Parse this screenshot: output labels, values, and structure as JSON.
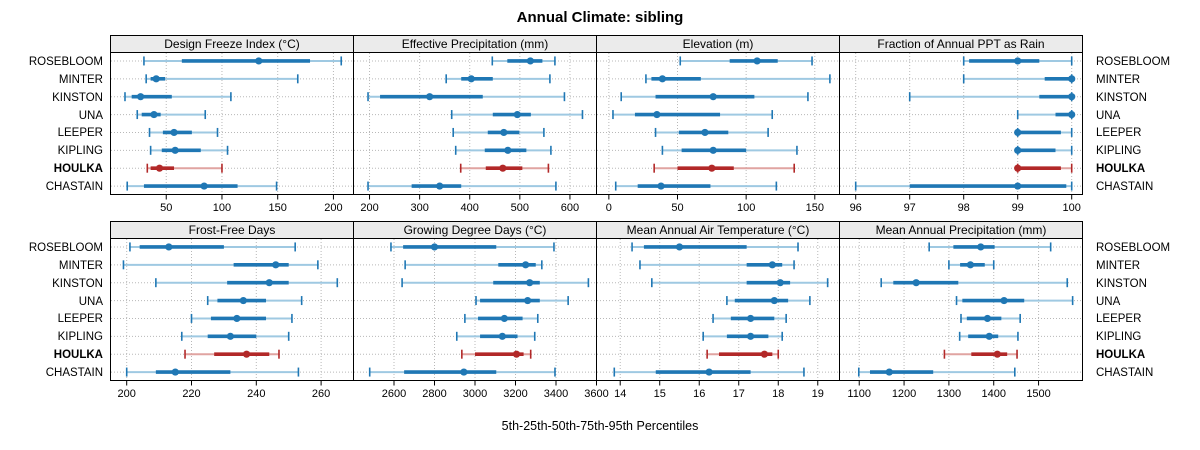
{
  "title": "Annual Climate: sibling",
  "caption": "5th-25th-50th-75th-95th Percentiles",
  "stations": [
    "ROSEBLOOM",
    "MINTER",
    "KINSTON",
    "UNA",
    "LEEPER",
    "KIPLING",
    "HOULKA",
    "CHASTAIN"
  ],
  "highlight_station": "HOULKA",
  "percentile_labels": [
    "5th",
    "25th",
    "50th",
    "75th",
    "95th"
  ],
  "colors": {
    "point": "#1f77b4",
    "whisker_light": "#9fc9e2",
    "highlight_point": "#b22828",
    "highlight_whisker_light": "#e0a4a1",
    "strip_bg": "#ebebeb",
    "panel_border": "#000000",
    "grid": "#b8b8b8",
    "text": "#000000"
  },
  "chart_data": {
    "type": "scatter",
    "variant": "percentile-interval-dotplot (5th,25th,50th,75th,95th)",
    "grid": "dotted",
    "layout": "2 rows x 4 columns, station labels on both sides, HOULKA highlighted red/bold",
    "panels": [
      {
        "title": "Design Freeze Index (°C)",
        "xlim": [
          0,
          218
        ],
        "ticks": [
          50,
          100,
          150,
          200
        ],
        "series": [
          [
            30,
            64,
            133,
            179,
            207
          ],
          [
            32,
            36,
            41,
            49,
            168
          ],
          [
            13,
            19,
            27,
            55,
            108
          ],
          [
            24,
            28,
            39,
            45,
            85
          ],
          [
            35,
            47,
            57,
            73,
            96
          ],
          [
            36,
            46,
            58,
            81,
            105
          ],
          [
            33,
            36,
            44,
            57,
            100
          ],
          [
            15,
            30,
            84,
            114,
            149
          ]
        ]
      },
      {
        "title": "Effective Precipitation (mm)",
        "xlim": [
          168,
          653
        ],
        "ticks": [
          200,
          300,
          400,
          500,
          600
        ],
        "series": [
          [
            445,
            475,
            521,
            545,
            570
          ],
          [
            353,
            383,
            403,
            446,
            560
          ],
          [
            197,
            221,
            320,
            426,
            589
          ],
          [
            364,
            446,
            495,
            522,
            625
          ],
          [
            367,
            436,
            468,
            499,
            548
          ],
          [
            372,
            430,
            476,
            513,
            562
          ],
          [
            382,
            432,
            466,
            505,
            557
          ],
          [
            197,
            284,
            340,
            383,
            572
          ]
        ]
      },
      {
        "title": "Elevation (m)",
        "xlim": [
          -9,
          168
        ],
        "ticks": [
          0,
          50,
          100,
          150
        ],
        "series": [
          [
            52,
            88,
            108,
            123,
            148
          ],
          [
            27,
            31,
            39,
            67,
            161
          ],
          [
            9,
            34,
            76,
            106,
            145
          ],
          [
            3,
            19,
            35,
            81,
            119
          ],
          [
            34,
            51,
            70,
            87,
            116
          ],
          [
            39,
            53,
            76,
            100,
            137
          ],
          [
            33,
            50,
            75,
            91,
            135
          ],
          [
            5,
            21,
            38,
            74,
            122
          ]
        ]
      },
      {
        "title": "Fraction of Annual PPT as Rain",
        "xlim": [
          95.7,
          100.2
        ],
        "ticks": [
          96,
          97,
          98,
          99,
          100
        ],
        "series": [
          [
            98.0,
            98.1,
            99.0,
            99.4,
            100.0
          ],
          [
            98.0,
            99.5,
            100.0,
            100.0,
            100.0
          ],
          [
            97.0,
            99.4,
            100.0,
            100.0,
            100.0
          ],
          [
            99.0,
            99.7,
            100.0,
            100.0,
            100.0
          ],
          [
            99.0,
            99.0,
            99.0,
            99.8,
            100.0
          ],
          [
            99.0,
            99.0,
            99.0,
            99.7,
            100.0
          ],
          [
            99.0,
            99.0,
            99.0,
            99.8,
            100.0
          ],
          [
            96.0,
            97.0,
            99.0,
            99.9,
            100.0
          ]
        ]
      },
      {
        "title": "Frost-Free Days",
        "xlim": [
          195,
          270
        ],
        "ticks": [
          200,
          220,
          240,
          260
        ],
        "series": [
          [
            201,
            204,
            213,
            230,
            252
          ],
          [
            199,
            233,
            246,
            250,
            259
          ],
          [
            209,
            231,
            244,
            250,
            265
          ],
          [
            225,
            228,
            236,
            243,
            254
          ],
          [
            220,
            226,
            234,
            243,
            251
          ],
          [
            217,
            225,
            232,
            240,
            250
          ],
          [
            218,
            227,
            237,
            244,
            247
          ],
          [
            200,
            209,
            215,
            232,
            253
          ]
        ]
      },
      {
        "title": "Growing Degree Days (°C)",
        "xlim": [
          2400,
          3600
        ],
        "ticks": [
          2600,
          2800,
          3000,
          3200,
          3400,
          3600
        ],
        "series": [
          [
            2585,
            2645,
            2800,
            3105,
            3390
          ],
          [
            2655,
            3115,
            3250,
            3300,
            3330
          ],
          [
            2640,
            3090,
            3270,
            3320,
            3560
          ],
          [
            3005,
            3025,
            3260,
            3320,
            3460
          ],
          [
            2950,
            3015,
            3145,
            3235,
            3310
          ],
          [
            2910,
            3025,
            3135,
            3210,
            3295
          ],
          [
            2935,
            3000,
            3205,
            3240,
            3275
          ],
          [
            2480,
            2650,
            2945,
            3105,
            3395
          ]
        ]
      },
      {
        "title": "Mean Annual Air Temperature (°C)",
        "xlim": [
          13.4,
          19.55
        ],
        "ticks": [
          14,
          15,
          16,
          17,
          18,
          19
        ],
        "series": [
          [
            14.3,
            14.6,
            15.5,
            17.2,
            18.5
          ],
          [
            14.5,
            17.2,
            17.85,
            18.1,
            18.4
          ],
          [
            14.8,
            17.2,
            18.05,
            18.3,
            19.25
          ],
          [
            16.7,
            16.9,
            17.9,
            18.25,
            18.8
          ],
          [
            16.35,
            16.8,
            17.3,
            17.9,
            18.2
          ],
          [
            16.1,
            16.7,
            17.3,
            17.75,
            18.1
          ],
          [
            16.2,
            16.5,
            17.65,
            17.85,
            18.0
          ],
          [
            13.85,
            14.9,
            16.25,
            17.3,
            18.65
          ]
        ]
      },
      {
        "title": "Mean Annual Precipitation (mm)",
        "xlim": [
          1056,
          1598
        ],
        "ticks": [
          1100,
          1200,
          1300,
          1400,
          1500
        ],
        "series": [
          [
            1256,
            1310,
            1371,
            1402,
            1527
          ],
          [
            1300,
            1325,
            1348,
            1380,
            1400
          ],
          [
            1149,
            1176,
            1227,
            1321,
            1564
          ],
          [
            1317,
            1330,
            1423,
            1468,
            1576
          ],
          [
            1327,
            1340,
            1386,
            1417,
            1459
          ],
          [
            1324,
            1343,
            1390,
            1410,
            1454
          ],
          [
            1290,
            1350,
            1408,
            1430,
            1452
          ],
          [
            1099,
            1124,
            1167,
            1265,
            1447
          ]
        ]
      }
    ]
  }
}
